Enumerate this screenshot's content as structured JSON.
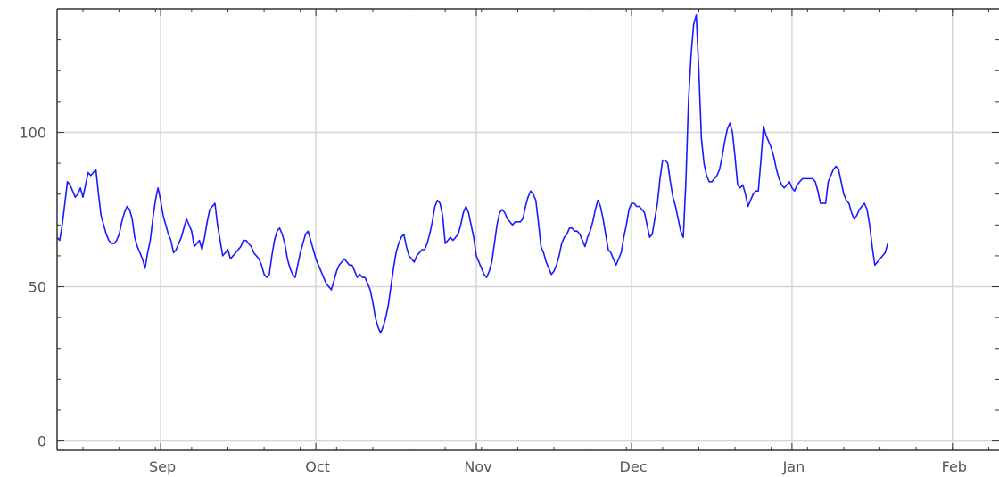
{
  "chart_data": {
    "type": "line",
    "title": "",
    "xlabel": "",
    "ylabel": "",
    "grid": true,
    "xlim": [
      "2021-08-12",
      "2022-02-10"
    ],
    "ylim": [
      -3,
      140
    ],
    "x_ticks": [
      {
        "label": "Sep",
        "date": "2021-09-01"
      },
      {
        "label": "Oct",
        "date": "2021-10-01"
      },
      {
        "label": "Nov",
        "date": "2021-11-01"
      },
      {
        "label": "Dec",
        "date": "2021-12-01"
      },
      {
        "label": "Jan",
        "date": "2022-01-01"
      },
      {
        "label": "Feb",
        "date": "2022-02-01"
      }
    ],
    "y_ticks": [
      0,
      50,
      100
    ],
    "series": [
      {
        "color": "#1a1aff",
        "start_date": "2021-08-12",
        "values": [
          66,
          65,
          70,
          77,
          84,
          83,
          81,
          79,
          80,
          82,
          79,
          83,
          87,
          86,
          87,
          88,
          80,
          73,
          70,
          67,
          65,
          64,
          64,
          65,
          67,
          71,
          74,
          76,
          75,
          72,
          66,
          63,
          61,
          59,
          56,
          61,
          65,
          72,
          78,
          82,
          78,
          73,
          70,
          67,
          65,
          61,
          62,
          64,
          66,
          69,
          72,
          70,
          68,
          63,
          64,
          65,
          62,
          66,
          71,
          75,
          76,
          77,
          70,
          65,
          60,
          61,
          62,
          59,
          60,
          61,
          62,
          63,
          65,
          65,
          64,
          63,
          61,
          60,
          59,
          57,
          54,
          53,
          54,
          60,
          65,
          68,
          69,
          67,
          64,
          59,
          56,
          54,
          53,
          57,
          61,
          64,
          67,
          68,
          65,
          62,
          59,
          57,
          55,
          53,
          51,
          50,
          49,
          52,
          55,
          57,
          58,
          59,
          58,
          57,
          57,
          55,
          53,
          54,
          53,
          53,
          51,
          49,
          45,
          40,
          37,
          35,
          37,
          40,
          44,
          50,
          56,
          61,
          64,
          66,
          67,
          63,
          60,
          59,
          58,
          60,
          61,
          62,
          62,
          64,
          67,
          71,
          76,
          78,
          77,
          73,
          64,
          65,
          66,
          65,
          66,
          67,
          70,
          74,
          76,
          74,
          70,
          66,
          60,
          58,
          56,
          54,
          53,
          55,
          58,
          64,
          70,
          74,
          75,
          74,
          72,
          71,
          70,
          71,
          71,
          71,
          72,
          76,
          79,
          81,
          80,
          78,
          71,
          63,
          61,
          58,
          56,
          54,
          55,
          57,
          60,
          64,
          66,
          67,
          69,
          69,
          68,
          68,
          67,
          65,
          63,
          66,
          68,
          71,
          75,
          78,
          76,
          72,
          67,
          62,
          61,
          59,
          57,
          59,
          61,
          66,
          70,
          75,
          77,
          77,
          76,
          76,
          75,
          74,
          70,
          66,
          67,
          72,
          77,
          85,
          91,
          91,
          90,
          84,
          79,
          76,
          72,
          68,
          66,
          84,
          110,
          125,
          135,
          138,
          120,
          98,
          90,
          86,
          84,
          84,
          85,
          86,
          88,
          92,
          97,
          101,
          103,
          100,
          92,
          83,
          82,
          83,
          80,
          76,
          78,
          80,
          81,
          81,
          91,
          102,
          99,
          97,
          95,
          92,
          88,
          85,
          83,
          82,
          83,
          84,
          82,
          81,
          83,
          84,
          85,
          85,
          85,
          85,
          85,
          84,
          81,
          77,
          77,
          77,
          84,
          86,
          88,
          89,
          88,
          84,
          80,
          78,
          77,
          74,
          72,
          73,
          75,
          76,
          77,
          75,
          70,
          63,
          57,
          58,
          59,
          60,
          61,
          64
        ]
      }
    ]
  }
}
